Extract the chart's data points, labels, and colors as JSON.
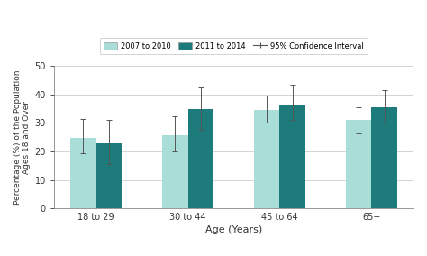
{
  "categories": [
    "18 to 29",
    "30 to 44",
    "45 to 64",
    "65+"
  ],
  "series1_values": [
    24.8,
    25.8,
    34.5,
    31.2
  ],
  "series2_values": [
    23.0,
    34.8,
    36.0,
    35.5
  ],
  "series1_ci_low": [
    19.5,
    20.0,
    30.0,
    26.5
  ],
  "series1_ci_high": [
    31.5,
    32.5,
    39.5,
    35.5
  ],
  "series2_ci_low": [
    15.5,
    27.5,
    31.0,
    30.0
  ],
  "series2_ci_high": [
    31.0,
    42.5,
    43.5,
    41.5
  ],
  "color1": "#a8ddd8",
  "color2": "#1e7b7b",
  "ylabel": "Percentage (%) of the Population\nAges 18 and Over",
  "xlabel": "Age (Years)",
  "ylim": [
    0,
    50
  ],
  "yticks": [
    0,
    10,
    20,
    30,
    40,
    50
  ],
  "legend1": "2007 to 2010",
  "legend2": "2011 to 2014",
  "legend3": "95% Confidence Interval",
  "bg_color": "#ffffff",
  "plot_bg": "#ffffff",
  "bar_width": 0.28
}
